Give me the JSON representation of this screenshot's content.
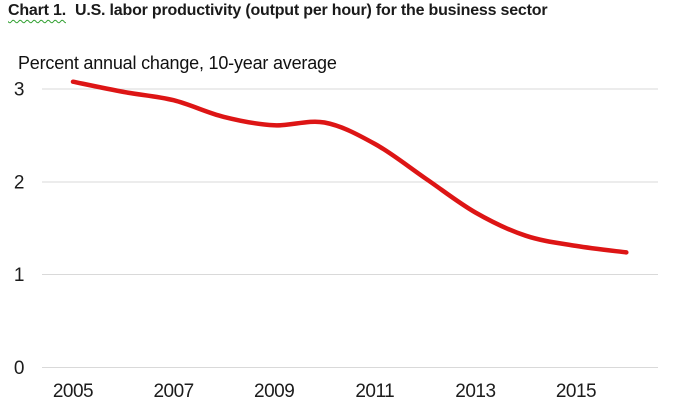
{
  "header": {
    "title_prefix": "Chart 1.",
    "title_text": "U.S. labor productivity (output per hour) for the business sector",
    "subtitle": "Percent annual change, 10-year average"
  },
  "colors": {
    "line": "#dd1515",
    "gridline": "#d9d9d9",
    "tick_text": "#1c1c1c",
    "title_text": "#1a1a1a",
    "squiggle": "#2e9e2e",
    "background": "#ffffff"
  },
  "chart_data": {
    "type": "line",
    "title": "Chart 1.  U.S. labor productivity (output per hour) for the business sector",
    "ylabel": "Percent annual change, 10-year average",
    "xlabel": "",
    "x": [
      2005,
      2006,
      2007,
      2008,
      2009,
      2010,
      2011,
      2012,
      2013,
      2014,
      2015,
      2016
    ],
    "series": [
      {
        "name": "10-year average",
        "values": [
          3.08,
          2.97,
          2.88,
          2.7,
          2.61,
          2.64,
          2.41,
          2.04,
          1.67,
          1.42,
          1.31,
          1.24
        ]
      }
    ],
    "xticks": [
      "2005",
      "2007",
      "2009",
      "2011",
      "2013",
      "2015"
    ],
    "yticks": [
      "0",
      "1",
      "2",
      "3"
    ],
    "xlim": [
      2005,
      2016
    ],
    "ylim": [
      0,
      3.3
    ],
    "grid": "horizontal",
    "legend": "none"
  }
}
